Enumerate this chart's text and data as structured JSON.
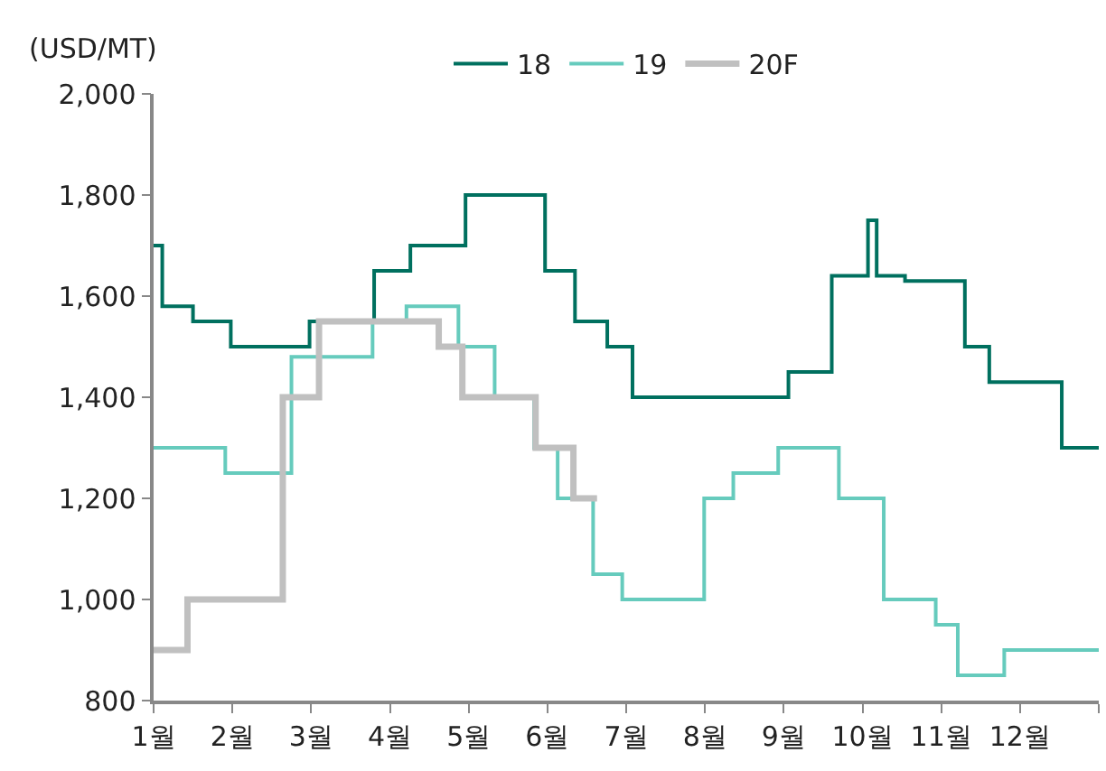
{
  "chart_data": {
    "type": "step",
    "ylabel": "(USD/MT)",
    "legend": "top",
    "xlim": [
      1,
      13
    ],
    "xticks": [
      {
        "value": 1,
        "label": "1월"
      },
      {
        "value": 2,
        "label": "2월"
      },
      {
        "value": 3,
        "label": "3월"
      },
      {
        "value": 4,
        "label": "4월"
      },
      {
        "value": 5,
        "label": "5월"
      },
      {
        "value": 6,
        "label": "6월"
      },
      {
        "value": 7,
        "label": "7월"
      },
      {
        "value": 8,
        "label": "8월"
      },
      {
        "value": 9,
        "label": "9월"
      },
      {
        "value": 10,
        "label": "10월"
      },
      {
        "value": 11,
        "label": "11월"
      },
      {
        "value": 12,
        "label": "12월"
      },
      {
        "value": 13,
        "label": null
      }
    ],
    "ylim": [
      800,
      2000
    ],
    "yticks": [
      {
        "value": 800,
        "label": "800"
      },
      {
        "value": 1000,
        "label": "1,000"
      },
      {
        "value": 1200,
        "label": "1,200"
      },
      {
        "value": 1400,
        "label": "1,400"
      },
      {
        "value": 1600,
        "label": "1,600"
      },
      {
        "value": 1800,
        "label": "1,800"
      },
      {
        "value": 2000,
        "label": "2,000"
      }
    ],
    "series": [
      {
        "name": "18",
        "color": "#00705f",
        "x": [
          1,
          1.11,
          1.5,
          1.98,
          2.98,
          3.8,
          4.26,
          4.96,
          5.97,
          6.35,
          6.76,
          7.08,
          9.06,
          9.61,
          10.07,
          10.18,
          10.54,
          11.3,
          11.61,
          12.53,
          13
        ],
        "values": [
          1700,
          1580,
          1550,
          1500,
          1550,
          1650,
          1700,
          1800,
          1650,
          1550,
          1500,
          1400,
          1450,
          1640,
          1750,
          1640,
          1630,
          1500,
          1430,
          1300,
          1300
        ]
      },
      {
        "name": "19",
        "color": "#66cbbd",
        "x": [
          1,
          1.91,
          2.75,
          3.78,
          4.21,
          4.87,
          5.33,
          5.83,
          6.13,
          6.58,
          6.95,
          7.99,
          8.36,
          8.93,
          9.7,
          10.27,
          10.93,
          11.21,
          11.8,
          13
        ],
        "values": [
          1300,
          1250,
          1480,
          1550,
          1580,
          1500,
          1400,
          1300,
          1200,
          1050,
          1000,
          1200,
          1250,
          1300,
          1200,
          1000,
          950,
          850,
          900,
          900
        ]
      },
      {
        "name": "20F",
        "color": "#c0c0c0",
        "x": [
          1,
          1.43,
          2.64,
          3.1,
          4.62,
          4.92,
          5.85,
          6.33,
          6.63
        ],
        "values": [
          900,
          1000,
          1400,
          1550,
          1500,
          1400,
          1300,
          1200,
          1200
        ]
      }
    ]
  }
}
